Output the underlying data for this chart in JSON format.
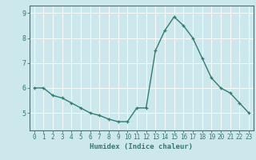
{
  "x": [
    0,
    1,
    2,
    3,
    4,
    5,
    6,
    7,
    8,
    9,
    10,
    11,
    12,
    13,
    14,
    15,
    16,
    17,
    18,
    19,
    20,
    21,
    22,
    23
  ],
  "y": [
    6.0,
    6.0,
    5.7,
    5.6,
    5.4,
    5.2,
    5.0,
    4.9,
    4.75,
    4.65,
    4.65,
    5.2,
    5.2,
    7.5,
    8.3,
    8.85,
    8.5,
    8.0,
    7.2,
    6.4,
    6.0,
    5.8,
    5.4,
    5.0
  ],
  "xlabel": "Humidex (Indice chaleur)",
  "xlim": [
    -0.5,
    23.5
  ],
  "ylim": [
    4.3,
    9.3
  ],
  "yticks": [
    5,
    6,
    7,
    8,
    9
  ],
  "xticks": [
    0,
    1,
    2,
    3,
    4,
    5,
    6,
    7,
    8,
    9,
    10,
    11,
    12,
    13,
    14,
    15,
    16,
    17,
    18,
    19,
    20,
    21,
    22,
    23
  ],
  "line_color": "#2e7d6e",
  "marker_color": "#2e7d6e",
  "bg_color": "#cde8ec",
  "grid_color": "#ffffff",
  "axis_color": "#2e7d6e",
  "tick_label_color": "#2e7d6e",
  "xlabel_color": "#2e7d6e",
  "linewidth": 1.0,
  "markersize": 3.5,
  "tick_fontsize": 5.5,
  "xlabel_fontsize": 6.5
}
